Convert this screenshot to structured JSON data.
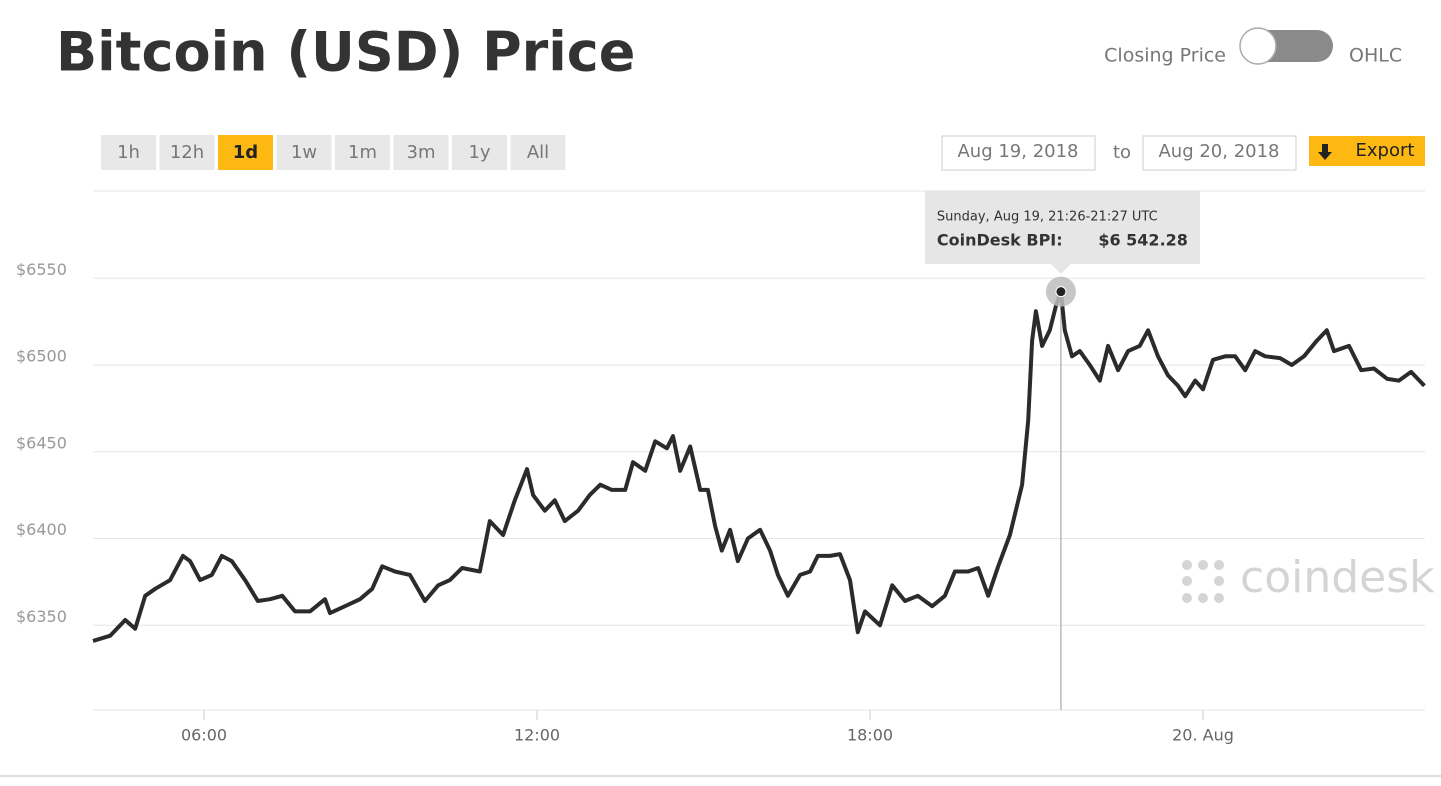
{
  "header": {
    "title": "Bitcoin (USD) Price"
  },
  "controls": {
    "toggle_left": "Closing Price",
    "toggle_right": "OHLC",
    "range_buttons": [
      "1h",
      "12h",
      "1d",
      "1w",
      "1m",
      "3m",
      "1y",
      "All"
    ],
    "active_range": "1d",
    "date_from": "Aug 19, 2018",
    "date_to_label": "to",
    "date_to": "Aug 20, 2018",
    "export": "Export"
  },
  "chart_data": {
    "type": "line",
    "color": "#2b2b2b",
    "watermark": "coindesk",
    "x": [
      4.0,
      4.31,
      4.58,
      4.76,
      4.94,
      5.12,
      5.39,
      5.62,
      5.75,
      5.93,
      6.14,
      6.32,
      6.5,
      6.74,
      6.97,
      7.19,
      7.41,
      7.64,
      7.91,
      8.18,
      8.27,
      8.54,
      8.81,
      9.03,
      9.21,
      9.44,
      9.71,
      9.98,
      10.22,
      10.43,
      10.65,
      10.97,
      11.15,
      11.39,
      11.6,
      11.82,
      11.93,
      12.14,
      12.32,
      12.5,
      12.74,
      12.95,
      13.14,
      13.35,
      13.59,
      13.73,
      13.95,
      14.13,
      14.34,
      14.45,
      14.58,
      14.76,
      14.94,
      15.08,
      15.21,
      15.33,
      15.48,
      15.62,
      15.8,
      16.02,
      16.2,
      16.34,
      16.52,
      16.74,
      16.92,
      17.06,
      17.28,
      17.46,
      17.64,
      17.78,
      17.91,
      18.18,
      18.4,
      18.63,
      18.86,
      19.12,
      19.35,
      19.53,
      19.77,
      19.95,
      20.13,
      20.31,
      20.52,
      20.74,
      20.85,
      20.92,
      20.99,
      21.1,
      21.24,
      21.35,
      21.44,
      21.51,
      21.64,
      21.78,
      21.96,
      22.14,
      22.29,
      22.47,
      22.65,
      22.86,
      23.01,
      23.19,
      23.37,
      23.55,
      23.68,
      23.86,
      24.0,
      24.18,
      24.4,
      24.58,
      24.76,
      24.94,
      25.12,
      25.39,
      25.6,
      25.82,
      26.05,
      26.23,
      26.36,
      26.63,
      26.85,
      27.08,
      27.32,
      27.53,
      27.75,
      27.99
    ],
    "values": [
      6341,
      6344,
      6353,
      6348,
      6367,
      6371,
      6376,
      6390,
      6387,
      6376,
      6379,
      6390,
      6387,
      6376,
      6364,
      6365,
      6367,
      6358,
      6358,
      6365,
      6357,
      6361,
      6365,
      6371,
      6384,
      6381,
      6379,
      6364,
      6373,
      6376,
      6383,
      6381,
      6410,
      6402,
      6422,
      6440,
      6425,
      6416,
      6422,
      6410,
      6416,
      6425,
      6431,
      6428,
      6428,
      6444,
      6439,
      6456,
      6452,
      6459,
      6439,
      6453,
      6428,
      6428,
      6407,
      6393,
      6405,
      6387,
      6400,
      6405,
      6393,
      6379,
      6367,
      6379,
      6381,
      6390,
      6390,
      6391,
      6376,
      6346,
      6358,
      6350,
      6373,
      6364,
      6367,
      6361,
      6367,
      6381,
      6381,
      6383,
      6367,
      6384,
      6402,
      6431,
      6468,
      6514,
      6531,
      6511,
      6520,
      6534,
      6542.28,
      6520,
      6505,
      6508,
      6500,
      6491,
      6511,
      6497,
      6508,
      6511,
      6520,
      6505,
      6494,
      6488,
      6482,
      6491,
      6486,
      6503,
      6505,
      6505,
      6497,
      6508,
      6505,
      6504,
      6500,
      6505,
      6514,
      6520,
      6508,
      6511,
      6497,
      6498,
      6492,
      6491,
      6496,
      6488
    ],
    "xlim": [
      4,
      28
    ],
    "xticks": [
      {
        "value": 6,
        "label": "06:00"
      },
      {
        "value": 12,
        "label": "12:00"
      },
      {
        "value": 18,
        "label": "18:00"
      },
      {
        "value": 24,
        "label": "20. Aug"
      }
    ],
    "ylim": [
      6300,
      6600
    ],
    "yticks": [
      {
        "value": 6350,
        "label": "$6350"
      },
      {
        "value": 6400,
        "label": "$6400"
      },
      {
        "value": 6450,
        "label": "$6450"
      },
      {
        "value": 6500,
        "label": "$6500"
      },
      {
        "value": 6550,
        "label": "$6550"
      }
    ],
    "grid": true,
    "tooltip": {
      "x": 21.44,
      "title": "Sunday, Aug 19, 21:26-21:27 UTC",
      "label": "CoinDesk BPI:",
      "value": 6542.28,
      "value_label": "$6 542.28"
    }
  }
}
